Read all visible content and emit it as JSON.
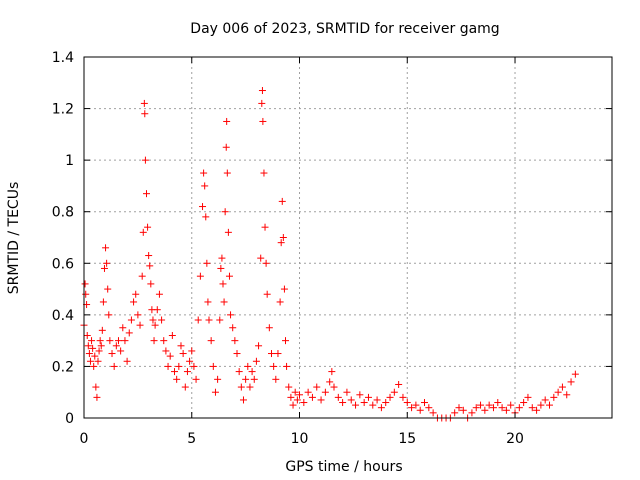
{
  "chart_data": {
    "type": "scatter",
    "title": "Day 006 of 2023, SRMTID for receiver gamg",
    "xlabel": "GPS time / hours",
    "ylabel": "SRMTID / TECUs",
    "xlim": [
      0,
      24.5
    ],
    "ylim": [
      0,
      1.4
    ],
    "xticks": [
      0,
      5,
      10,
      15,
      20
    ],
    "xtick_labels": [
      "0",
      "5",
      "10",
      "15",
      "20"
    ],
    "yticks": [
      0,
      0.2,
      0.4,
      0.6,
      0.8,
      1,
      1.2,
      1.4
    ],
    "ytick_labels": [
      "0",
      "0.2",
      "0.4",
      "0.6",
      "0.8",
      "1",
      "1.2",
      "1.4"
    ],
    "grid": true,
    "marker": "+",
    "color": "#ff0000",
    "series": [
      {
        "name": "SRMTID",
        "points": [
          [
            0.0,
            0.36
          ],
          [
            0.05,
            0.52
          ],
          [
            0.08,
            0.48
          ],
          [
            0.12,
            0.44
          ],
          [
            0.15,
            0.32
          ],
          [
            0.2,
            0.28
          ],
          [
            0.25,
            0.25
          ],
          [
            0.3,
            0.22
          ],
          [
            0.35,
            0.3
          ],
          [
            0.4,
            0.27
          ],
          [
            0.45,
            0.2
          ],
          [
            0.5,
            0.24
          ],
          [
            0.55,
            0.12
          ],
          [
            0.6,
            0.08
          ],
          [
            0.65,
            0.22
          ],
          [
            0.7,
            0.26
          ],
          [
            0.75,
            0.3
          ],
          [
            0.8,
            0.28
          ],
          [
            0.85,
            0.34
          ],
          [
            0.9,
            0.45
          ],
          [
            0.95,
            0.58
          ],
          [
            1.0,
            0.66
          ],
          [
            1.05,
            0.6
          ],
          [
            1.1,
            0.5
          ],
          [
            1.15,
            0.4
          ],
          [
            1.2,
            0.3
          ],
          [
            1.3,
            0.25
          ],
          [
            1.4,
            0.2
          ],
          [
            1.5,
            0.28
          ],
          [
            1.6,
            0.3
          ],
          [
            1.7,
            0.26
          ],
          [
            1.8,
            0.35
          ],
          [
            1.9,
            0.3
          ],
          [
            2.0,
            0.22
          ],
          [
            2.1,
            0.33
          ],
          [
            2.2,
            0.38
          ],
          [
            2.3,
            0.45
          ],
          [
            2.4,
            0.48
          ],
          [
            2.5,
            0.4
          ],
          [
            2.6,
            0.36
          ],
          [
            2.7,
            0.55
          ],
          [
            2.75,
            0.72
          ],
          [
            2.8,
            1.22
          ],
          [
            2.82,
            1.18
          ],
          [
            2.85,
            1.0
          ],
          [
            2.9,
            0.87
          ],
          [
            2.95,
            0.74
          ],
          [
            3.0,
            0.63
          ],
          [
            3.05,
            0.59
          ],
          [
            3.1,
            0.52
          ],
          [
            3.15,
            0.42
          ],
          [
            3.2,
            0.38
          ],
          [
            3.25,
            0.3
          ],
          [
            3.3,
            0.36
          ],
          [
            3.4,
            0.42
          ],
          [
            3.5,
            0.48
          ],
          [
            3.6,
            0.38
          ],
          [
            3.7,
            0.3
          ],
          [
            3.8,
            0.26
          ],
          [
            3.9,
            0.2
          ],
          [
            4.0,
            0.24
          ],
          [
            4.1,
            0.32
          ],
          [
            4.2,
            0.18
          ],
          [
            4.3,
            0.15
          ],
          [
            4.4,
            0.2
          ],
          [
            4.5,
            0.28
          ],
          [
            4.6,
            0.25
          ],
          [
            4.7,
            0.12
          ],
          [
            4.8,
            0.18
          ],
          [
            4.9,
            0.22
          ],
          [
            5.0,
            0.26
          ],
          [
            5.1,
            0.2
          ],
          [
            5.2,
            0.15
          ],
          [
            5.3,
            0.38
          ],
          [
            5.4,
            0.55
          ],
          [
            5.5,
            0.82
          ],
          [
            5.55,
            0.95
          ],
          [
            5.6,
            0.9
          ],
          [
            5.65,
            0.78
          ],
          [
            5.7,
            0.6
          ],
          [
            5.75,
            0.45
          ],
          [
            5.8,
            0.38
          ],
          [
            5.9,
            0.3
          ],
          [
            6.0,
            0.2
          ],
          [
            6.1,
            0.1
          ],
          [
            6.2,
            0.15
          ],
          [
            6.3,
            0.38
          ],
          [
            6.35,
            0.58
          ],
          [
            6.4,
            0.62
          ],
          [
            6.45,
            0.52
          ],
          [
            6.5,
            0.45
          ],
          [
            6.55,
            0.8
          ],
          [
            6.6,
            1.05
          ],
          [
            6.62,
            1.15
          ],
          [
            6.65,
            0.95
          ],
          [
            6.7,
            0.72
          ],
          [
            6.75,
            0.55
          ],
          [
            6.8,
            0.4
          ],
          [
            6.9,
            0.35
          ],
          [
            7.0,
            0.3
          ],
          [
            7.1,
            0.25
          ],
          [
            7.2,
            0.18
          ],
          [
            7.3,
            0.12
          ],
          [
            7.4,
            0.07
          ],
          [
            7.5,
            0.15
          ],
          [
            7.6,
            0.2
          ],
          [
            7.7,
            0.12
          ],
          [
            7.8,
            0.18
          ],
          [
            7.9,
            0.15
          ],
          [
            8.0,
            0.22
          ],
          [
            8.1,
            0.28
          ],
          [
            8.2,
            0.62
          ],
          [
            8.25,
            1.22
          ],
          [
            8.28,
            1.27
          ],
          [
            8.3,
            1.15
          ],
          [
            8.35,
            0.95
          ],
          [
            8.4,
            0.74
          ],
          [
            8.45,
            0.6
          ],
          [
            8.5,
            0.48
          ],
          [
            8.6,
            0.35
          ],
          [
            8.7,
            0.25
          ],
          [
            8.8,
            0.2
          ],
          [
            8.9,
            0.15
          ],
          [
            9.0,
            0.25
          ],
          [
            9.1,
            0.45
          ],
          [
            9.15,
            0.68
          ],
          [
            9.2,
            0.84
          ],
          [
            9.25,
            0.7
          ],
          [
            9.3,
            0.5
          ],
          [
            9.35,
            0.3
          ],
          [
            9.4,
            0.2
          ],
          [
            9.5,
            0.12
          ],
          [
            9.6,
            0.08
          ],
          [
            9.7,
            0.05
          ],
          [
            9.8,
            0.1
          ],
          [
            9.9,
            0.07
          ],
          [
            10.0,
            0.09
          ],
          [
            10.2,
            0.06
          ],
          [
            10.4,
            0.1
          ],
          [
            10.6,
            0.08
          ],
          [
            10.8,
            0.12
          ],
          [
            11.0,
            0.07
          ],
          [
            11.2,
            0.1
          ],
          [
            11.4,
            0.14
          ],
          [
            11.5,
            0.18
          ],
          [
            11.6,
            0.12
          ],
          [
            11.8,
            0.08
          ],
          [
            12.0,
            0.06
          ],
          [
            12.2,
            0.1
          ],
          [
            12.4,
            0.07
          ],
          [
            12.6,
            0.05
          ],
          [
            12.8,
            0.09
          ],
          [
            13.0,
            0.06
          ],
          [
            13.2,
            0.08
          ],
          [
            13.4,
            0.05
          ],
          [
            13.6,
            0.07
          ],
          [
            13.8,
            0.04
          ],
          [
            14.0,
            0.06
          ],
          [
            14.2,
            0.08
          ],
          [
            14.4,
            0.1
          ],
          [
            14.6,
            0.13
          ],
          [
            14.8,
            0.08
          ],
          [
            15.0,
            0.06
          ],
          [
            15.2,
            0.04
          ],
          [
            15.4,
            0.05
          ],
          [
            15.6,
            0.03
          ],
          [
            15.8,
            0.06
          ],
          [
            16.0,
            0.04
          ],
          [
            16.2,
            0.02
          ],
          [
            16.4,
            0.0
          ],
          [
            16.6,
            0.0
          ],
          [
            16.8,
            0.0
          ],
          [
            17.0,
            0.0
          ],
          [
            17.2,
            0.02
          ],
          [
            17.4,
            0.04
          ],
          [
            17.6,
            0.03
          ],
          [
            17.8,
            0.0
          ],
          [
            18.0,
            0.02
          ],
          [
            18.2,
            0.04
          ],
          [
            18.4,
            0.05
          ],
          [
            18.6,
            0.03
          ],
          [
            18.8,
            0.05
          ],
          [
            19.0,
            0.04
          ],
          [
            19.2,
            0.06
          ],
          [
            19.4,
            0.04
          ],
          [
            19.6,
            0.03
          ],
          [
            19.8,
            0.05
          ],
          [
            20.0,
            0.02
          ],
          [
            20.2,
            0.04
          ],
          [
            20.4,
            0.06
          ],
          [
            20.6,
            0.08
          ],
          [
            20.8,
            0.04
          ],
          [
            21.0,
            0.03
          ],
          [
            21.2,
            0.05
          ],
          [
            21.4,
            0.07
          ],
          [
            21.6,
            0.05
          ],
          [
            21.8,
            0.08
          ],
          [
            22.0,
            0.1
          ],
          [
            22.2,
            0.12
          ],
          [
            22.4,
            0.09
          ],
          [
            22.6,
            0.14
          ],
          [
            22.8,
            0.17
          ]
        ]
      }
    ]
  }
}
